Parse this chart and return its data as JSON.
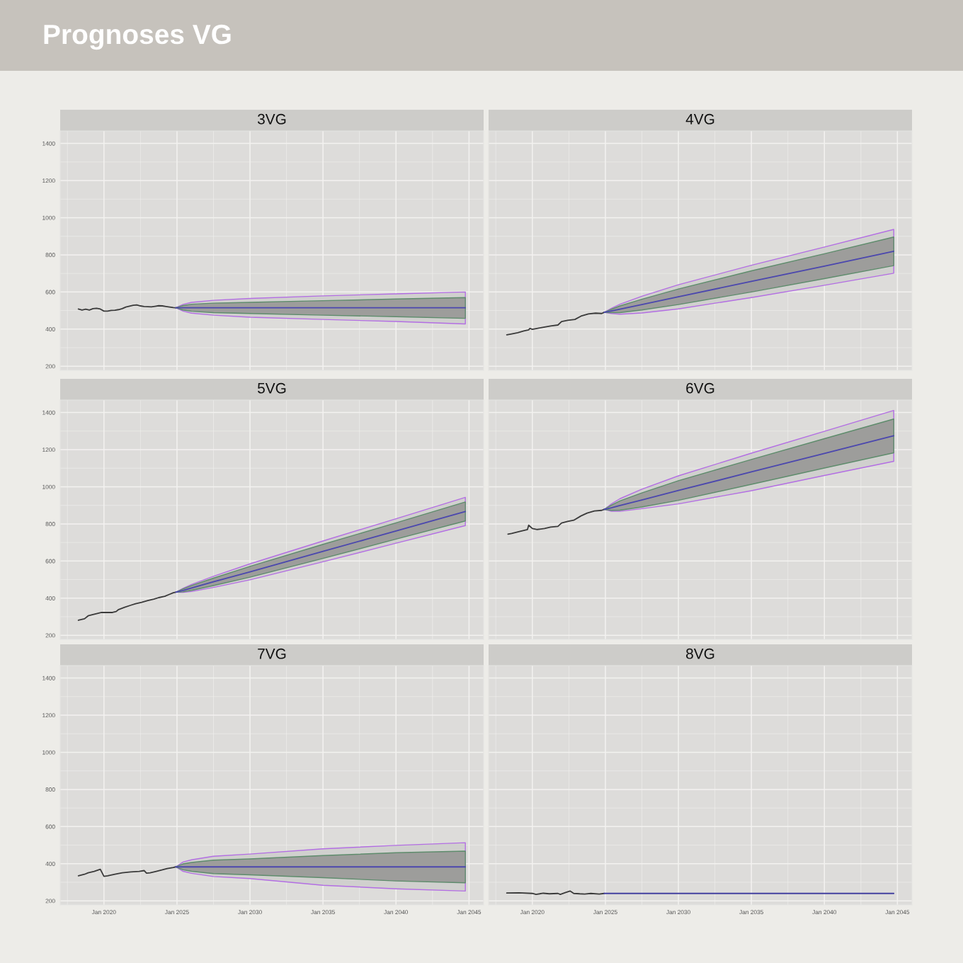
{
  "chart_data": [
    {
      "type": "other",
      "title": "Prognoses VG"
    },
    {
      "type": "line",
      "title": "3VG",
      "xlim": [
        "2017-01",
        "2046-01"
      ],
      "ylim": [
        178,
        1467
      ],
      "xticks": [
        {
          "value": "2020-01",
          "label": null
        },
        {
          "value": "2025-01",
          "label": null
        },
        {
          "value": "2030-01",
          "label": null
        },
        {
          "value": "2035-01",
          "label": null
        },
        {
          "value": "2040-01",
          "label": null
        },
        {
          "value": "2045-01",
          "label": null
        }
      ],
      "yticks": [
        200,
        400,
        600,
        800,
        1000,
        1200,
        1400
      ],
      "grid": true,
      "tick_labels": "y",
      "series": [
        {
          "type": "line",
          "color": "#3a3a3a",
          "x": [
            "2018-04",
            "2018-07",
            "2018-10",
            "2019-01",
            "2019-04",
            "2019-07",
            "2019-10",
            "2020-01",
            "2020-04",
            "2020-07",
            "2020-10",
            "2021-01",
            "2021-04",
            "2021-07",
            "2021-10",
            "2022-01",
            "2022-04",
            "2022-07",
            "2022-10",
            "2023-01",
            "2023-04",
            "2023-07",
            "2023-10",
            "2024-01",
            "2024-04",
            "2024-07",
            "2024-10",
            "2024-12"
          ],
          "values": [
            508,
            503,
            507,
            503,
            510,
            512,
            508,
            497,
            497,
            501,
            502,
            505,
            510,
            519,
            524,
            528,
            530,
            525,
            522,
            521,
            520,
            523,
            526,
            525,
            522,
            519,
            516,
            515
          ]
        },
        {
          "type": "line",
          "color": "#b36ee3",
          "x": [
            "2024-12",
            "2025-06",
            "2026-01",
            "2027-07",
            "2030-01",
            "2035-01",
            "2040-01",
            "2044-10"
          ],
          "values": [
            null,
            null,
            null,
            null,
            null,
            null,
            null,
            null
          ],
          "lower": [
            515,
            497,
            486,
            475,
            464,
            452,
            441,
            428
          ],
          "upper": [
            515,
            533,
            544,
            555,
            565,
            579,
            590,
            600
          ]
        },
        {
          "type": "line",
          "color": "#5e8c6c",
          "x": [
            "2024-12",
            "2025-06",
            "2026-01",
            "2027-07",
            "2030-01",
            "2035-01",
            "2040-01",
            "2044-10"
          ],
          "values": [
            null,
            null,
            null,
            null,
            null,
            null,
            null,
            null
          ],
          "lower": [
            515,
            503,
            496,
            489,
            484,
            475,
            467,
            458
          ],
          "upper": [
            515,
            527,
            534,
            540,
            544,
            553,
            562,
            570
          ]
        },
        {
          "type": "line",
          "color": "#4b47ae",
          "x": [
            "2024-12",
            "2025-06",
            "2026-01",
            "2027-07",
            "2030-01",
            "2035-01",
            "2040-01",
            "2044-10"
          ],
          "values": [
            515,
            515,
            515,
            515,
            515,
            515,
            515,
            515
          ]
        }
      ]
    },
    {
      "type": "line",
      "title": "4VG",
      "xlim": [
        "2017-01",
        "2046-01"
      ],
      "ylim": [
        178,
        1467
      ],
      "xticks": [
        {
          "value": "2020-01",
          "label": null
        },
        {
          "value": "2025-01",
          "label": null
        },
        {
          "value": "2030-01",
          "label": null
        },
        {
          "value": "2035-01",
          "label": null
        },
        {
          "value": "2040-01",
          "label": null
        },
        {
          "value": "2045-01",
          "label": null
        }
      ],
      "yticks": [
        {
          "value": 200,
          "label": null
        },
        {
          "value": 400,
          "label": null
        },
        {
          "value": 600,
          "label": null
        },
        {
          "value": 800,
          "label": null
        },
        {
          "value": 1000,
          "label": null
        },
        {
          "value": 1200,
          "label": null
        },
        {
          "value": 1400,
          "label": null
        }
      ],
      "grid": true,
      "tick_labels": false,
      "series": [
        {
          "type": "line",
          "color": "#3a3a3a",
          "x": [
            "2018-04",
            "2018-08",
            "2019-01",
            "2019-06",
            "2019-10",
            "2019-11",
            "2020-01",
            "2020-07",
            "2021-04",
            "2021-10",
            "2022-01",
            "2022-06",
            "2022-12",
            "2023-05",
            "2023-11",
            "2024-05",
            "2024-10",
            "2024-12"
          ],
          "values": [
            369,
            374,
            381,
            390,
            396,
            404,
            399,
            406,
            417,
            422,
            441,
            447,
            452,
            470,
            482,
            486,
            484,
            490
          ]
        },
        {
          "type": "line",
          "color": "#b36ee3",
          "x": [
            "2024-12",
            "2025-06",
            "2026-01",
            "2027-07",
            "2030-01",
            "2035-01",
            "2040-01",
            "2044-10"
          ],
          "values": [
            null,
            null,
            null,
            null,
            null,
            null,
            null,
            null
          ],
          "lower": [
            490,
            484,
            480,
            487,
            509,
            570,
            636,
            701
          ],
          "upper": [
            490,
            512,
            534,
            577,
            639,
            744,
            842,
            937
          ]
        },
        {
          "type": "line",
          "color": "#5e8c6c",
          "x": [
            "2024-12",
            "2025-06",
            "2026-01",
            "2027-07",
            "2030-01",
            "2035-01",
            "2040-01",
            "2044-10"
          ],
          "values": [
            null,
            null,
            null,
            null,
            null,
            null,
            null,
            null
          ],
          "lower": [
            490,
            489,
            489,
            503,
            532,
            600,
            672,
            742
          ],
          "upper": [
            490,
            507,
            525,
            561,
            616,
            714,
            806,
            896
          ]
        },
        {
          "type": "line",
          "color": "#4b47ae",
          "x": [
            "2024-12",
            "2025-06",
            "2026-01",
            "2027-07",
            "2030-01",
            "2035-01",
            "2040-01",
            "2044-10"
          ],
          "values": [
            490,
            498,
            507,
            532,
            574,
            657,
            739,
            819
          ]
        }
      ]
    },
    {
      "type": "line",
      "title": "5VG",
      "xlim": [
        "2017-01",
        "2046-01"
      ],
      "ylim": [
        178,
        1467
      ],
      "xticks": [
        {
          "value": "2020-01",
          "label": null
        },
        {
          "value": "2025-01",
          "label": null
        },
        {
          "value": "2030-01",
          "label": null
        },
        {
          "value": "2035-01",
          "label": null
        },
        {
          "value": "2040-01",
          "label": null
        },
        {
          "value": "2045-01",
          "label": null
        }
      ],
      "yticks": [
        200,
        400,
        600,
        800,
        1000,
        1200,
        1400
      ],
      "grid": true,
      "tick_labels": "y",
      "series": [
        {
          "type": "line",
          "color": "#3a3a3a",
          "x": [
            "2018-04",
            "2018-09",
            "2018-12",
            "2019-04",
            "2019-07",
            "2019-11",
            "2020-04",
            "2020-08",
            "2020-11",
            "2021-01",
            "2021-06",
            "2021-11",
            "2022-03",
            "2022-08",
            "2023-01",
            "2023-06",
            "2023-10",
            "2024-03",
            "2024-07",
            "2024-10",
            "2024-12"
          ],
          "values": [
            281,
            289,
            305,
            312,
            317,
            323,
            323,
            323,
            328,
            339,
            351,
            362,
            370,
            378,
            387,
            395,
            403,
            410,
            421,
            429,
            432
          ]
        },
        {
          "type": "line",
          "color": "#b36ee3",
          "x": [
            "2024-12",
            "2025-06",
            "2026-01",
            "2027-07",
            "2030-01",
            "2035-01",
            "2040-01",
            "2044-10"
          ],
          "values": [
            null,
            null,
            null,
            null,
            null,
            null,
            null,
            null
          ],
          "lower": [
            432,
            431,
            436,
            458,
            499,
            596,
            696,
            791
          ],
          "upper": [
            432,
            453,
            474,
            518,
            585,
            708,
            828,
            943
          ]
        },
        {
          "type": "line",
          "color": "#5e8c6c",
          "x": [
            "2024-12",
            "2025-06",
            "2026-01",
            "2027-07",
            "2030-01",
            "2035-01",
            "2040-01",
            "2044-10"
          ],
          "values": [
            null,
            null,
            null,
            null,
            null,
            null,
            null,
            null
          ],
          "lower": [
            432,
            434,
            442,
            468,
            513,
            614,
            718,
            816
          ],
          "upper": [
            432,
            450,
            468,
            508,
            571,
            690,
            806,
            918
          ]
        },
        {
          "type": "line",
          "color": "#4b47ae",
          "x": [
            "2024-12",
            "2025-06",
            "2026-01",
            "2027-07",
            "2030-01",
            "2035-01",
            "2040-01",
            "2044-10"
          ],
          "values": [
            432,
            442,
            455,
            488,
            542,
            652,
            762,
            867
          ]
        }
      ]
    },
    {
      "type": "line",
      "title": "6VG",
      "xlim": [
        "2017-01",
        "2046-01"
      ],
      "ylim": [
        178,
        1467
      ],
      "xticks": [
        {
          "value": "2020-01",
          "label": null
        },
        {
          "value": "2025-01",
          "label": null
        },
        {
          "value": "2030-01",
          "label": null
        },
        {
          "value": "2035-01",
          "label": null
        },
        {
          "value": "2040-01",
          "label": null
        },
        {
          "value": "2045-01",
          "label": null
        }
      ],
      "yticks": [
        {
          "value": 200,
          "label": null
        },
        {
          "value": 400,
          "label": null
        },
        {
          "value": 600,
          "label": null
        },
        {
          "value": 800,
          "label": null
        },
        {
          "value": 1000,
          "label": null
        },
        {
          "value": 1200,
          "label": null
        },
        {
          "value": 1400,
          "label": null
        }
      ],
      "grid": true,
      "tick_labels": false,
      "series": [
        {
          "type": "line",
          "color": "#3a3a3a",
          "x": [
            "2018-05",
            "2018-08",
            "2019-03",
            "2019-09",
            "2019-10",
            "2020-01",
            "2020-05",
            "2020-11",
            "2021-04",
            "2021-10",
            "2022-01",
            "2022-06",
            "2022-11",
            "2023-05",
            "2023-10",
            "2024-04",
            "2024-10",
            "2024-12"
          ],
          "values": [
            745,
            749,
            760,
            770,
            793,
            775,
            770,
            775,
            783,
            787,
            805,
            813,
            820,
            843,
            858,
            870,
            873,
            878
          ]
        },
        {
          "type": "line",
          "color": "#b36ee3",
          "x": [
            "2024-12",
            "2025-06",
            "2026-01",
            "2027-07",
            "2030-01",
            "2035-01",
            "2040-01",
            "2044-10"
          ],
          "values": [
            null,
            null,
            null,
            null,
            null,
            null,
            null,
            null
          ],
          "lower": [
            878,
            868,
            868,
            882,
            908,
            979,
            1061,
            1137
          ],
          "upper": [
            878,
            908,
            936,
            987,
            1059,
            1181,
            1299,
            1411
          ]
        },
        {
          "type": "line",
          "color": "#5e8c6c",
          "x": [
            "2024-12",
            "2025-06",
            "2026-01",
            "2027-07",
            "2030-01",
            "2035-01",
            "2040-01",
            "2044-10"
          ],
          "values": [
            null,
            null,
            null,
            null,
            null,
            null,
            null,
            null
          ],
          "lower": [
            878,
            873,
            874,
            891,
            927,
            1013,
            1101,
            1183
          ],
          "upper": [
            878,
            901,
            924,
            967,
            1033,
            1147,
            1259,
            1365
          ]
        },
        {
          "type": "line",
          "color": "#4b47ae",
          "x": [
            "2024-12",
            "2025-06",
            "2026-01",
            "2027-07",
            "2030-01",
            "2035-01",
            "2040-01",
            "2044-10"
          ],
          "values": [
            878,
            887,
            899,
            929,
            980,
            1080,
            1180,
            1275
          ]
        }
      ]
    },
    {
      "type": "line",
      "title": "7VG",
      "xlim": [
        "2017-01",
        "2046-01"
      ],
      "ylim": [
        178,
        1467
      ],
      "xticks": [
        {
          "value": "2020-01",
          "label": "Jan 2020"
        },
        {
          "value": "2025-01",
          "label": "Jan 2025"
        },
        {
          "value": "2030-01",
          "label": "Jan 2030"
        },
        {
          "value": "2035-01",
          "label": "Jan 2035"
        },
        {
          "value": "2040-01",
          "label": "Jan 2040"
        },
        {
          "value": "2045-01",
          "label": "Jan 2045"
        }
      ],
      "yticks": [
        200,
        400,
        600,
        800,
        1000,
        1200,
        1400
      ],
      "grid": true,
      "series": [
        {
          "type": "line",
          "color": "#3a3a3a",
          "x": [
            "2018-04",
            "2018-09",
            "2018-12",
            "2019-05",
            "2019-10",
            "2020-01",
            "2020-04",
            "2020-10",
            "2021-04",
            "2021-11",
            "2022-06",
            "2022-10",
            "2022-12",
            "2023-03",
            "2023-08",
            "2024-01",
            "2024-05",
            "2024-10",
            "2024-12"
          ],
          "values": [
            335,
            343,
            351,
            359,
            370,
            332,
            335,
            343,
            351,
            356,
            359,
            363,
            349,
            351,
            359,
            367,
            374,
            380,
            383
          ]
        },
        {
          "type": "line",
          "color": "#b36ee3",
          "x": [
            "2024-12",
            "2025-06",
            "2026-01",
            "2027-07",
            "2030-01",
            "2035-01",
            "2040-01",
            "2044-10"
          ],
          "values": [
            null,
            null,
            null,
            null,
            null,
            null,
            null,
            null
          ],
          "lower": [
            383,
            359,
            348,
            331,
            320,
            284,
            265,
            253
          ],
          "upper": [
            383,
            409,
            421,
            440,
            452,
            480,
            499,
            513
          ]
        },
        {
          "type": "line",
          "color": "#5e8c6c",
          "x": [
            "2024-12",
            "2025-06",
            "2026-01",
            "2027-07",
            "2030-01",
            "2035-01",
            "2040-01",
            "2044-10"
          ],
          "values": [
            null,
            null,
            null,
            null,
            null,
            null,
            null,
            null
          ],
          "lower": [
            383,
            367,
            359,
            347,
            340,
            325,
            307,
            297
          ],
          "upper": [
            383,
            399,
            407,
            419,
            426,
            444,
            459,
            468
          ]
        },
        {
          "type": "line",
          "color": "#4b47ae",
          "x": [
            "2024-12",
            "2025-06",
            "2026-01",
            "2027-07",
            "2030-01",
            "2035-01",
            "2040-01",
            "2044-10"
          ],
          "values": [
            383,
            383,
            383,
            383,
            383,
            383,
            383,
            383
          ]
        }
      ]
    },
    {
      "type": "line",
      "title": "8VG",
      "xlim": [
        "2017-01",
        "2046-01"
      ],
      "ylim": [
        178,
        1467
      ],
      "xticks": [
        {
          "value": "2020-01",
          "label": "Jan 2020"
        },
        {
          "value": "2025-01",
          "label": "Jan 2025"
        },
        {
          "value": "2030-01",
          "label": "Jan 2030"
        },
        {
          "value": "2035-01",
          "label": "Jan 2035"
        },
        {
          "value": "2040-01",
          "label": "Jan 2040"
        },
        {
          "value": "2045-01",
          "label": "Jan 2045"
        }
      ],
      "yticks": [
        {
          "value": 200,
          "label": null
        },
        {
          "value": 400,
          "label": null
        },
        {
          "value": 600,
          "label": null
        },
        {
          "value": 800,
          "label": null
        },
        {
          "value": 1000,
          "label": null
        },
        {
          "value": 1200,
          "label": null
        },
        {
          "value": 1400,
          "label": null
        }
      ],
      "grid": true,
      "tick_labels": "x",
      "series": [
        {
          "type": "line",
          "color": "#3a3a3a",
          "x": [
            "2018-04",
            "2019-02",
            "2020-01",
            "2020-04",
            "2020-10",
            "2021-03",
            "2021-10",
            "2021-12",
            "2022-04",
            "2022-08",
            "2022-11",
            "2023-04",
            "2023-08",
            "2024-01",
            "2024-08",
            "2024-12"
          ],
          "values": [
            242,
            243,
            240,
            235,
            241,
            238,
            240,
            235,
            244,
            253,
            240,
            238,
            237,
            240,
            237,
            240
          ]
        },
        {
          "type": "line",
          "color": "#4340a0",
          "x": [
            "2024-12",
            "2044-10"
          ],
          "values": [
            240,
            240
          ]
        }
      ]
    }
  ]
}
